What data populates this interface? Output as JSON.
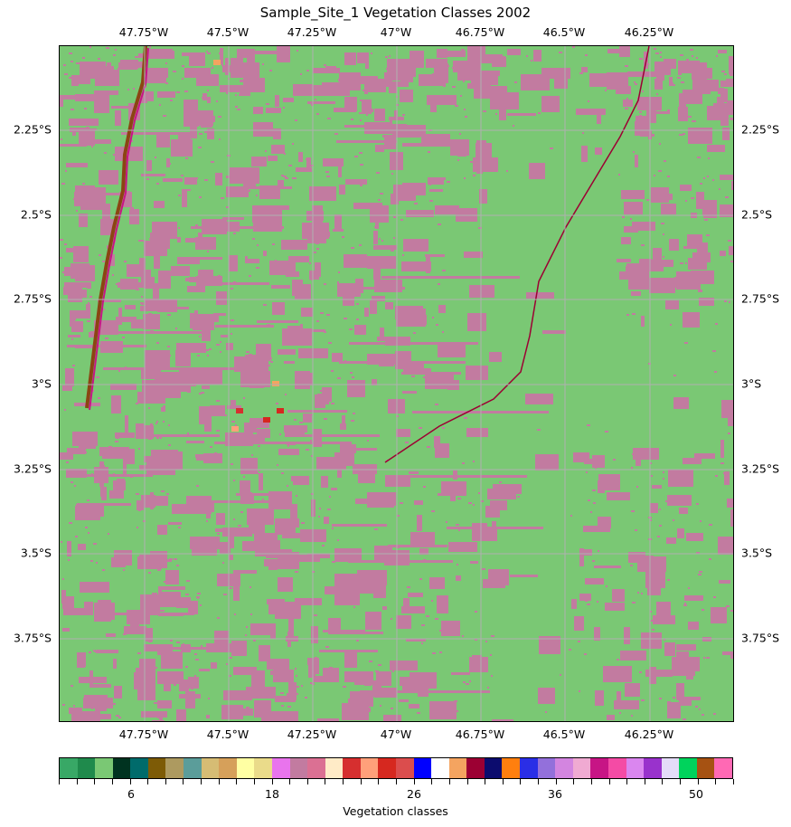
{
  "map": {
    "title": "Sample_Site_1 Vegetation Classes 2002",
    "lon_labels": [
      "47.75°W",
      "47.5°W",
      "47.25°W",
      "47°W",
      "46.75°W",
      "46.5°W",
      "46.25°W"
    ],
    "lat_labels": [
      "2.25°S",
      "2.5°S",
      "2.75°S",
      "3°S",
      "3.25°S",
      "3.5°S",
      "3.75°S"
    ],
    "background_class_color": "#7ac874",
    "dominant_classes": [
      {
        "description": "forest/green class",
        "color": "#7ac874"
      },
      {
        "description": "pink/mauve class",
        "color": "#c27ba0"
      }
    ]
  },
  "colorbar": {
    "label": "Vegetation classes",
    "tick_labels": [
      "6",
      "18",
      "26",
      "36",
      "50"
    ],
    "colors": [
      "#38a866",
      "#1f8a4c",
      "#7ac874",
      "#003320",
      "#006b6b",
      "#7d5b06",
      "#ad9a60",
      "#5b9d9a",
      "#d6bc74",
      "#d6a05a",
      "#ffffa3",
      "#eadb8a",
      "#e974ed",
      "#c27ba0",
      "#db7093",
      "#ffebc7",
      "#d62f2f",
      "#ffa07a",
      "#d6281f",
      "#db4d4d",
      "#0000ff",
      "#ffffff",
      "#f4a460",
      "#9c0033",
      "#0c0c6e",
      "#ff7f0e",
      "#2a2ee6",
      "#9370db",
      "#d385e0",
      "#f0aad2",
      "#c71585",
      "#f44ba5",
      "#da86ef",
      "#9932cc",
      "#e4dcf8",
      "#00d35c",
      "#a65212",
      "#ff69b4"
    ]
  }
}
